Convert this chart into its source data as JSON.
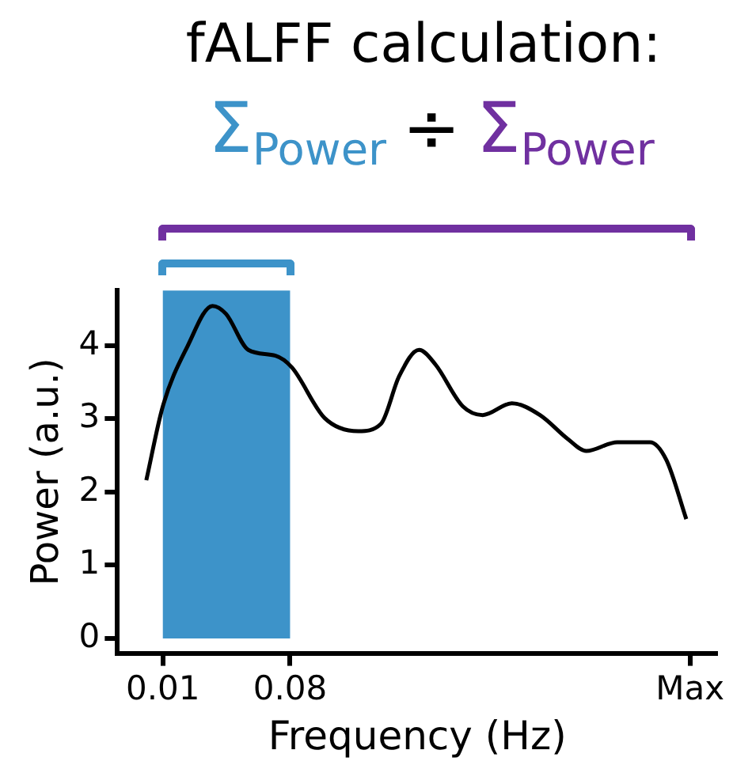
{
  "chart_data": {
    "type": "line",
    "title": "fALFF calculation:",
    "annotations": [
      "Σ$_{Power}$",
      "÷",
      "Σ$_{Power}$"
    ],
    "xlabel": "Frequency (Hz)",
    "ylabel": "Power (a.u.)",
    "series": [
      {
        "color": "#000000",
        "x": [
          0.0009,
          0.01,
          0.0236,
          0.0373,
          0.0448,
          0.057,
          0.072,
          0.081,
          0.099,
          0.1175,
          0.13,
          0.14,
          0.151,
          0.16,
          0.175,
          0.186,
          0.202,
          0.2175,
          0.233,
          0.243,
          0.26,
          0.278,
          0.287,
          0.298
        ],
        "values": [
          2.16,
          3.17,
          3.99,
          4.54,
          4.43,
          3.94,
          3.86,
          3.7,
          3.01,
          2.83,
          2.93,
          3.58,
          3.94,
          3.74,
          3.17,
          3.05,
          3.21,
          3.05,
          2.72,
          2.56,
          2.68,
          2.68,
          2.44,
          1.63
        ]
      }
    ],
    "bands": [
      {
        "axis": "x",
        "from": 0.01,
        "to": 0.08,
        "color": "#3d93c9"
      }
    ],
    "xlim": [
      -0.015,
      0.315
    ],
    "xticks": [
      0.01,
      0.08,
      {
        "value": 0.3,
        "label": "Max"
      }
    ],
    "ylim": [
      -0.2,
      4.75
    ],
    "yticks": [
      0,
      1,
      2,
      3,
      4
    ],
    "grid": false,
    "legend": false,
    "marker": "none",
    "line_style": "solid"
  }
}
